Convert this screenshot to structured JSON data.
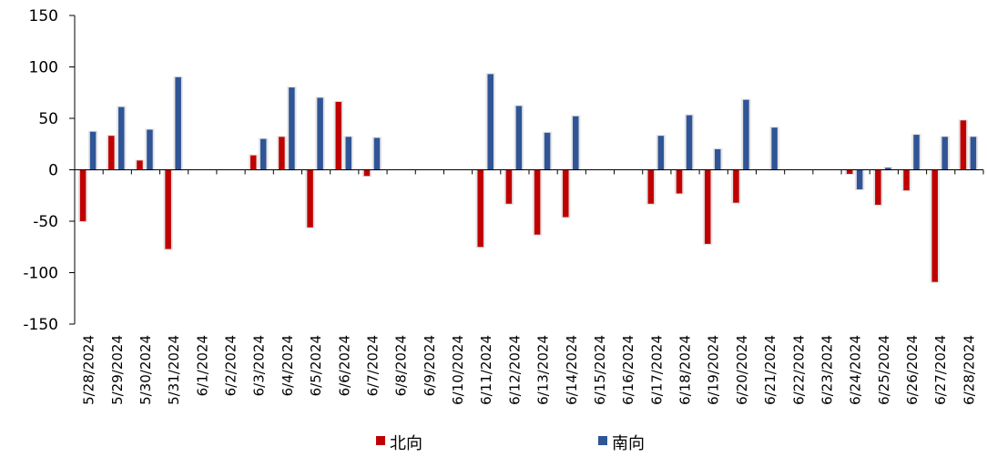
{
  "chart_data": {
    "type": "bar",
    "categories": [
      "5/28/2024",
      "5/29/2024",
      "5/30/2024",
      "5/31/2024",
      "6/1/2024",
      "6/2/2024",
      "6/3/2024",
      "6/4/2024",
      "6/5/2024",
      "6/6/2024",
      "6/7/2024",
      "6/8/2024",
      "6/9/2024",
      "6/10/2024",
      "6/11/2024",
      "6/12/2024",
      "6/13/2024",
      "6/14/2024",
      "6/15/2024",
      "6/16/2024",
      "6/17/2024",
      "6/18/2024",
      "6/19/2024",
      "6/20/2024",
      "6/21/2024",
      "6/22/2024",
      "6/23/2024",
      "6/24/2024",
      "6/25/2024",
      "6/26/2024",
      "6/27/2024",
      "6/28/2024"
    ],
    "series": [
      {
        "name": "北向",
        "color": "#c00000",
        "values": [
          -50,
          33,
          9,
          -77,
          0,
          0,
          14,
          32,
          -56,
          66,
          -6,
          0,
          0,
          0,
          -75,
          -33,
          -63,
          -46,
          0,
          0,
          -33,
          -23,
          -72,
          -32,
          0,
          0,
          0,
          -4,
          -34,
          -20,
          -109,
          48
        ]
      },
      {
        "name": "南向",
        "color": "#2f5597",
        "values": [
          37,
          61,
          39,
          90,
          0,
          0,
          30,
          80,
          70,
          32,
          31,
          0,
          0,
          0,
          93,
          62,
          36,
          52,
          0,
          0,
          33,
          53,
          20,
          68,
          41,
          0,
          0,
          -19,
          2,
          34,
          32,
          32
        ]
      }
    ],
    "ylim": [
      -150,
      150
    ],
    "yticks": [
      -150,
      -100,
      -50,
      0,
      50,
      100,
      150
    ],
    "xlabel": "",
    "ylabel": "",
    "legend_position": "bottom",
    "grid": false
  }
}
